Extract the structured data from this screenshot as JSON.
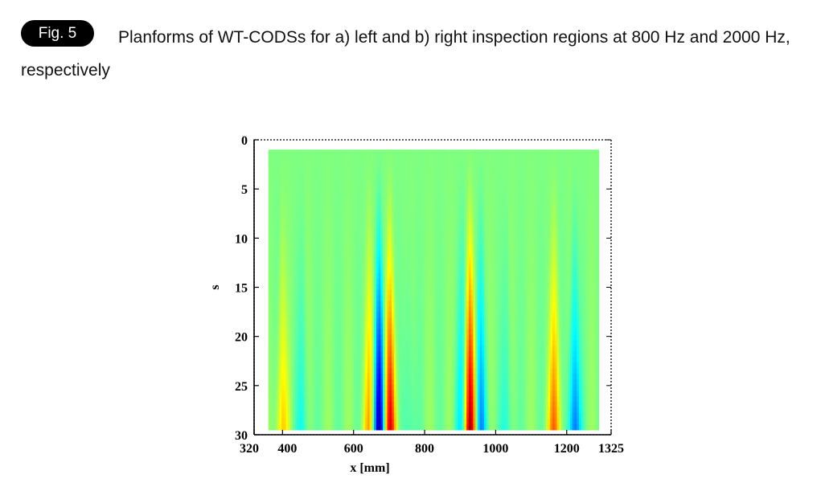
{
  "caption": {
    "badge": "Fig. 5",
    "text": "Planforms of WT-CODSs for a) left and b) right inspection regions at 800 Hz and 2000 Hz, respectively"
  },
  "chart_data": {
    "type": "heatmap",
    "title": "",
    "xlabel": "x [mm]",
    "ylabel": "s",
    "xlim": [
      320,
      1325
    ],
    "ylim": [
      0,
      30
    ],
    "y_inverted": true,
    "x_ticks": [
      320,
      400,
      600,
      800,
      1000,
      1200,
      1325
    ],
    "y_ticks": [
      0,
      5,
      10,
      15,
      20,
      25,
      30
    ],
    "data_x_range": [
      360,
      1290
    ],
    "colormap": "jet",
    "background_color": "#90f56a",
    "features": [
      {
        "x": 400,
        "sign": 1,
        "amplitude": 0.35
      },
      {
        "x": 455,
        "sign": -1,
        "amplitude": 0.2
      },
      {
        "x": 645,
        "sign": 1,
        "amplitude": 0.45
      },
      {
        "x": 672,
        "sign": -1,
        "amplitude": 1.0
      },
      {
        "x": 702,
        "sign": 1,
        "amplitude": 0.85
      },
      {
        "x": 755,
        "sign": -1,
        "amplitude": 0.15
      },
      {
        "x": 905,
        "sign": -1,
        "amplitude": 0.35
      },
      {
        "x": 928,
        "sign": 1,
        "amplitude": 1.0
      },
      {
        "x": 958,
        "sign": -1,
        "amplitude": 0.5
      },
      {
        "x": 1030,
        "sign": -1,
        "amplitude": 0.18
      },
      {
        "x": 1165,
        "sign": 1,
        "amplitude": 0.55
      },
      {
        "x": 1222,
        "sign": -1,
        "amplitude": 0.55
      }
    ]
  }
}
